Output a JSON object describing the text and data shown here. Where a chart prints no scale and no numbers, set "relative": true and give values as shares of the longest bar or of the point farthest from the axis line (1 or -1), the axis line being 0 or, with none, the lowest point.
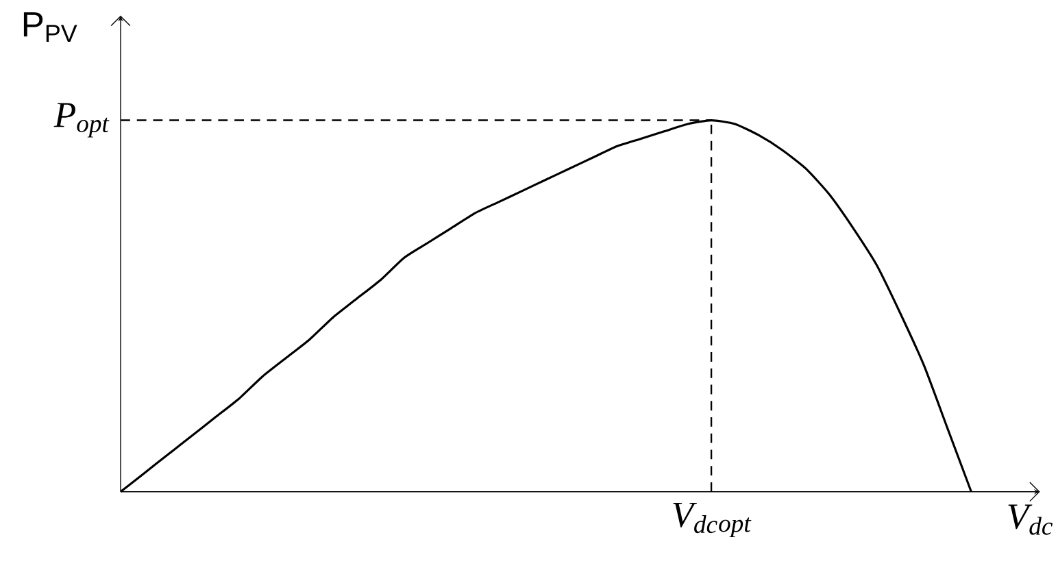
{
  "chart_data": {
    "type": "line",
    "relative": true,
    "xlabel": "V$_{dc}$",
    "ylabel": "P$_{PV}$",
    "categories": [
      null,
      null,
      null,
      null,
      null,
      null,
      null,
      null,
      null,
      null,
      null,
      null,
      null,
      null,
      null,
      null,
      null,
      null,
      null,
      null,
      null,
      null,
      null,
      null,
      null,
      null,
      null,
      null,
      null,
      null,
      null,
      null,
      null,
      null,
      null,
      null,
      null
    ],
    "series": [
      {
        "color": "#000000",
        "values": [
          0,
          0.05,
          0.1,
          0.15,
          0.2,
          0.25,
          0.31,
          0.36,
          0.41,
          0.47,
          0.52,
          0.57,
          0.63,
          0.67,
          0.71,
          0.75,
          0.78,
          0.81,
          0.84,
          0.87,
          0.9,
          0.93,
          0.95,
          0.97,
          0.99,
          1,
          0.99,
          0.96,
          0.92,
          0.87,
          0.8,
          0.71,
          0.61,
          0.48,
          0.34,
          0.17,
          0
        ]
      }
    ],
    "ref_lines": [
      {
        "axis": "y",
        "value": 1,
        "label": "P$_{opt}$",
        "line_style": "dashed"
      }
    ],
    "annotations": [
      "V$_{dc}$$_{opt}$"
    ],
    "marker": "none",
    "line_style": "solid"
  }
}
